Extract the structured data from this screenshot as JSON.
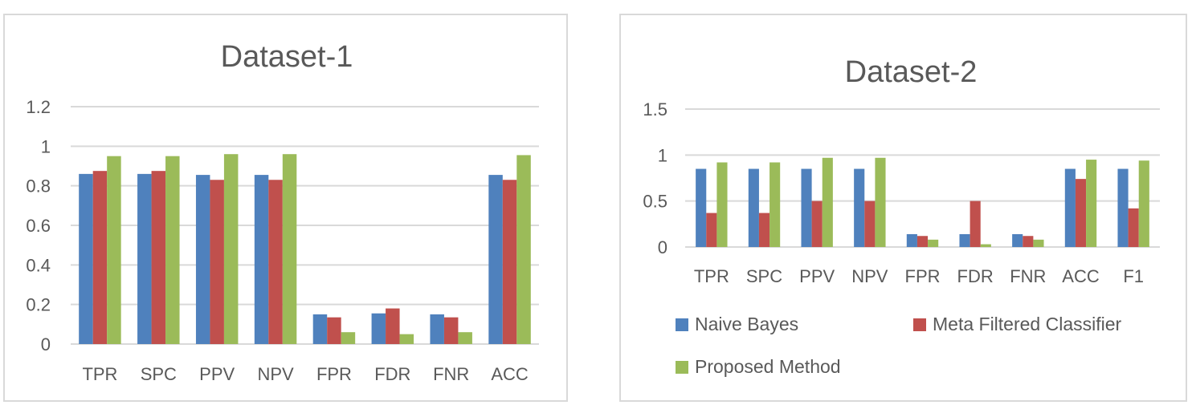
{
  "chart_data": [
    {
      "type": "bar",
      "title": "Dataset-1",
      "categories": [
        "TPR",
        "SPC",
        "PPV",
        "NPV",
        "FPR",
        "FDR",
        "FNR",
        "ACC"
      ],
      "series": [
        {
          "name": "Naive Bayes",
          "color": "#4f81bd",
          "values": [
            0.86,
            0.86,
            0.855,
            0.855,
            0.15,
            0.155,
            0.15,
            0.855
          ]
        },
        {
          "name": "Meta Filtered Classifier",
          "color": "#c0504d",
          "values": [
            0.875,
            0.875,
            0.83,
            0.83,
            0.135,
            0.18,
            0.135,
            0.83
          ]
        },
        {
          "name": "Proposed Method",
          "color": "#9bbb59",
          "values": [
            0.95,
            0.95,
            0.96,
            0.96,
            0.06,
            0.05,
            0.06,
            0.955
          ]
        }
      ],
      "y_ticks": [
        "0",
        "0.2",
        "0.4",
        "0.6",
        "0.8",
        "1",
        "1.2"
      ],
      "ylim": [
        0,
        1.2
      ],
      "grid": true,
      "legend": "none"
    },
    {
      "type": "bar",
      "title": "Dataset-2",
      "categories": [
        "TPR",
        "SPC",
        "PPV",
        "NPV",
        "FPR",
        "FDR",
        "FNR",
        "ACC",
        "F1"
      ],
      "series": [
        {
          "name": "Naive Bayes",
          "color": "#4f81bd",
          "values": [
            0.85,
            0.85,
            0.85,
            0.85,
            0.14,
            0.14,
            0.14,
            0.85,
            0.85
          ]
        },
        {
          "name": "Meta Filtered Classifier",
          "color": "#c0504d",
          "values": [
            0.37,
            0.37,
            0.5,
            0.5,
            0.12,
            0.5,
            0.12,
            0.74,
            0.42
          ]
        },
        {
          "name": "Proposed Method",
          "color": "#9bbb59",
          "values": [
            0.92,
            0.92,
            0.97,
            0.97,
            0.08,
            0.03,
            0.08,
            0.95,
            0.94
          ]
        }
      ],
      "y_ticks": [
        "0",
        "0.5",
        "1",
        "1.5"
      ],
      "ylim": [
        0,
        1.5
      ],
      "grid": true,
      "legend": "bottom"
    }
  ]
}
